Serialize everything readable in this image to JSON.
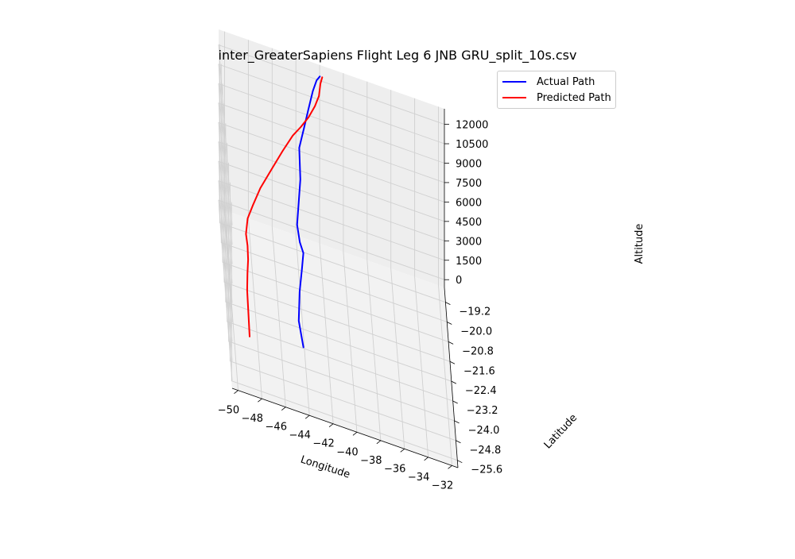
{
  "chart_data": {
    "type": "line",
    "title": "inter_GreaterSapiens Flight Leg 6 JNB GRU_split_10s.csv",
    "xlabel": "Longitude",
    "ylabel": "Latitude",
    "zlabel": "Altitude",
    "xticks": [
      "−50",
      "−48",
      "−46",
      "−44",
      "−42",
      "−40",
      "−38",
      "−36",
      "−34",
      "−32"
    ],
    "yticks": [
      "−25.6",
      "−24.8",
      "−24.0",
      "−23.2",
      "−22.4",
      "−21.6",
      "−20.8",
      "−20.0",
      "−19.2"
    ],
    "zticks": [
      "0",
      "1500",
      "3000",
      "4500",
      "6000",
      "7500",
      "9000",
      "10500",
      "12000"
    ],
    "xlim": [
      -50.5,
      -31.5
    ],
    "ylim": [
      -25.9,
      -18.6
    ],
    "zlim": [
      -600,
      13200
    ],
    "grid": true,
    "legend_position": "top-right",
    "series": [
      {
        "name": "Actual Path",
        "color": "#0000ff",
        "points": [
          [
            -44.5,
            -25.9,
            4500
          ],
          [
            -44.8,
            -25.3,
            5300
          ],
          [
            -44.6,
            -24.5,
            6100
          ],
          [
            -44.3,
            -23.8,
            6600
          ],
          [
            -44.1,
            -23.3,
            6950
          ],
          [
            -44.4,
            -23.3,
            7700
          ],
          [
            -44.6,
            -23.1,
            8600
          ],
          [
            -44.4,
            -22.7,
            9600
          ],
          [
            -44.2,
            -22.3,
            10700
          ],
          [
            -44.2,
            -21.7,
            12000
          ],
          [
            -43.7,
            -21.0,
            12300
          ],
          [
            -43.2,
            -20.2,
            12400
          ],
          [
            -42.7,
            -19.4,
            12480
          ],
          [
            -42.3,
            -18.9,
            12490
          ],
          [
            -42.0,
            -18.7,
            12500
          ]
        ]
      },
      {
        "name": "Predicted Path",
        "color": "#ff0000",
        "points": [
          [
            -49.0,
            -25.7,
            3500
          ],
          [
            -49.0,
            -25.1,
            4000
          ],
          [
            -49.0,
            -24.4,
            4600
          ],
          [
            -48.9,
            -23.9,
            5000
          ],
          [
            -48.8,
            -23.6,
            5500
          ],
          [
            -48.8,
            -23.3,
            6000
          ],
          [
            -48.9,
            -23.1,
            6500
          ],
          [
            -48.7,
            -22.7,
            7000
          ],
          [
            -48.2,
            -22.3,
            7400
          ],
          [
            -47.5,
            -21.9,
            8200
          ],
          [
            -46.5,
            -21.5,
            9200
          ],
          [
            -45.5,
            -21.1,
            10200
          ],
          [
            -44.6,
            -20.8,
            11100
          ],
          [
            -43.9,
            -20.6,
            11600
          ],
          [
            -43.2,
            -20.3,
            12000
          ],
          [
            -42.6,
            -19.9,
            12300
          ],
          [
            -42.2,
            -19.5,
            12450
          ],
          [
            -42.0,
            -19.0,
            12500
          ],
          [
            -41.8,
            -18.7,
            12500
          ]
        ]
      }
    ]
  }
}
